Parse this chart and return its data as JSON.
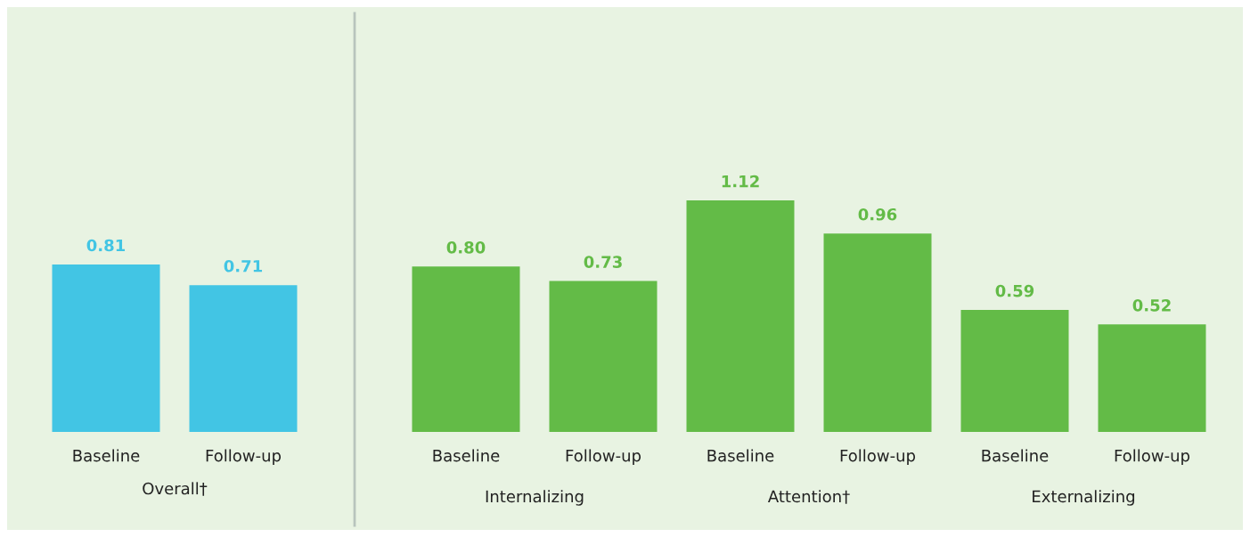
{
  "chart_data": [
    {
      "type": "bar",
      "categories": [
        "Baseline",
        "Follow-up"
      ],
      "values": [
        0.81,
        0.71
      ],
      "color": "#42c5e4",
      "data_labels": true,
      "xlabel": "Overall†"
    },
    {
      "type": "bar",
      "categories": [
        "Baseline",
        "Follow-up",
        "Baseline",
        "Follow-up",
        "Baseline",
        "Follow-up"
      ],
      "values": [
        0.8,
        0.73,
        1.12,
        0.96,
        0.59,
        0.52
      ],
      "value_labels": [
        "0.80",
        "0.73",
        "1.12",
        "0.96",
        "0.59",
        "0.52"
      ],
      "color": "#63bb47",
      "annotations": [
        "Internalizing",
        "Attention†",
        "Externalizing"
      ]
    }
  ]
}
